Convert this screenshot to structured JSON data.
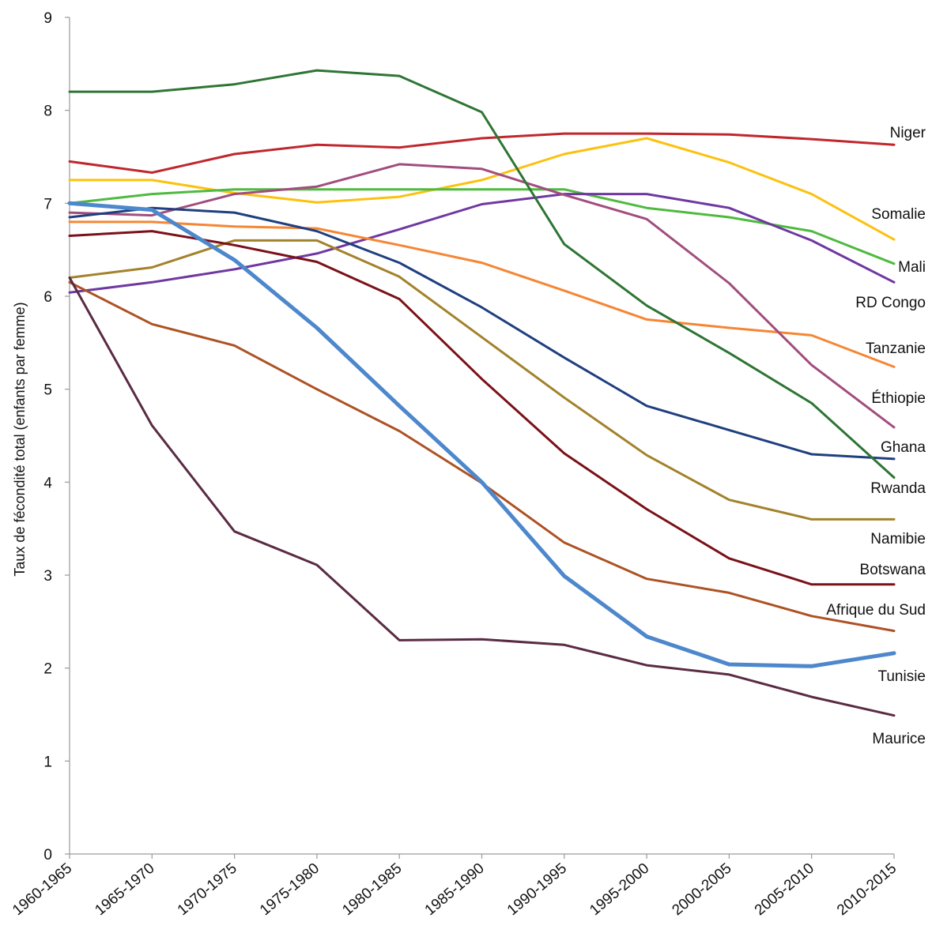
{
  "chart_data": {
    "type": "line",
    "title": "",
    "xlabel": "",
    "ylabel": "Taux de fécondité total (enfants par femme)",
    "ylim": [
      0,
      9
    ],
    "yticks": [
      "0",
      "1",
      "2",
      "3",
      "4",
      "5",
      "6",
      "7",
      "8",
      "9"
    ],
    "grid": false,
    "legend": "none (series labels at right end of lines)",
    "categories": [
      "1960-1965",
      "1965-1970",
      "1970-1975",
      "1975-1980",
      "1980-1985",
      "1985-1990",
      "1990-1995",
      "1995-2000",
      "2000-2005",
      "2005-2010",
      "2010-2015"
    ],
    "series": [
      {
        "name": "Niger",
        "color": "#c0272d",
        "values": [
          7.45,
          7.33,
          7.53,
          7.63,
          7.6,
          7.7,
          7.75,
          7.75,
          7.74,
          7.69,
          7.63
        ]
      },
      {
        "name": "Somalie",
        "color": "#fcc10f",
        "values": [
          7.25,
          7.25,
          7.11,
          7.01,
          7.07,
          7.25,
          7.53,
          7.7,
          7.44,
          7.1,
          6.61
        ]
      },
      {
        "name": "Mali",
        "color": "#4fba3f",
        "values": [
          7.0,
          7.1,
          7.15,
          7.15,
          7.15,
          7.15,
          7.15,
          6.95,
          6.85,
          6.7,
          6.35
        ]
      },
      {
        "name": "RD Congo",
        "color": "#6f38a1",
        "values": [
          6.04,
          6.15,
          6.29,
          6.46,
          6.72,
          6.99,
          7.1,
          7.1,
          6.95,
          6.6,
          6.15
        ]
      },
      {
        "name": "Tanzanie",
        "color": "#f58634",
        "values": [
          6.8,
          6.8,
          6.75,
          6.73,
          6.55,
          6.36,
          6.06,
          5.75,
          5.66,
          5.58,
          5.24
        ]
      },
      {
        "name": "Éthiopie",
        "color": "#a14d7e",
        "values": [
          6.9,
          6.87,
          7.1,
          7.18,
          7.42,
          7.37,
          7.09,
          6.83,
          6.14,
          5.26,
          4.59
        ]
      },
      {
        "name": "Ghana",
        "color": "#1f3f7f",
        "values": [
          6.85,
          6.95,
          6.9,
          6.7,
          6.36,
          5.88,
          5.34,
          4.82,
          4.56,
          4.3,
          4.25
        ]
      },
      {
        "name": "Rwanda",
        "color": "#2e7535",
        "values": [
          8.2,
          8.2,
          8.28,
          8.43,
          8.37,
          7.98,
          6.56,
          5.9,
          5.39,
          4.85,
          4.05
        ]
      },
      {
        "name": "Namibie",
        "color": "#a2822b",
        "values": [
          6.2,
          6.31,
          6.6,
          6.6,
          6.21,
          5.56,
          4.91,
          4.29,
          3.81,
          3.6,
          3.6
        ]
      },
      {
        "name": "Botswana",
        "color": "#7a1119",
        "values": [
          6.65,
          6.7,
          6.55,
          6.37,
          5.97,
          5.11,
          4.31,
          3.71,
          3.18,
          2.9,
          2.9
        ]
      },
      {
        "name": "Afrique du Sud",
        "color": "#ad5223",
        "values": [
          6.15,
          5.7,
          5.47,
          5.0,
          4.55,
          3.99,
          3.35,
          2.96,
          2.81,
          2.56,
          2.4
        ]
      },
      {
        "name": "Tunisie",
        "color": "#4d87cc",
        "width": 5,
        "values": [
          7.0,
          6.93,
          6.39,
          5.66,
          4.82,
          4.0,
          2.99,
          2.34,
          2.04,
          2.02,
          2.16
        ]
      },
      {
        "name": "Maurice",
        "color": "#5a2b43",
        "values": [
          6.2,
          4.61,
          3.47,
          3.11,
          2.3,
          2.31,
          2.25,
          2.03,
          1.93,
          1.69,
          1.49
        ]
      }
    ]
  }
}
